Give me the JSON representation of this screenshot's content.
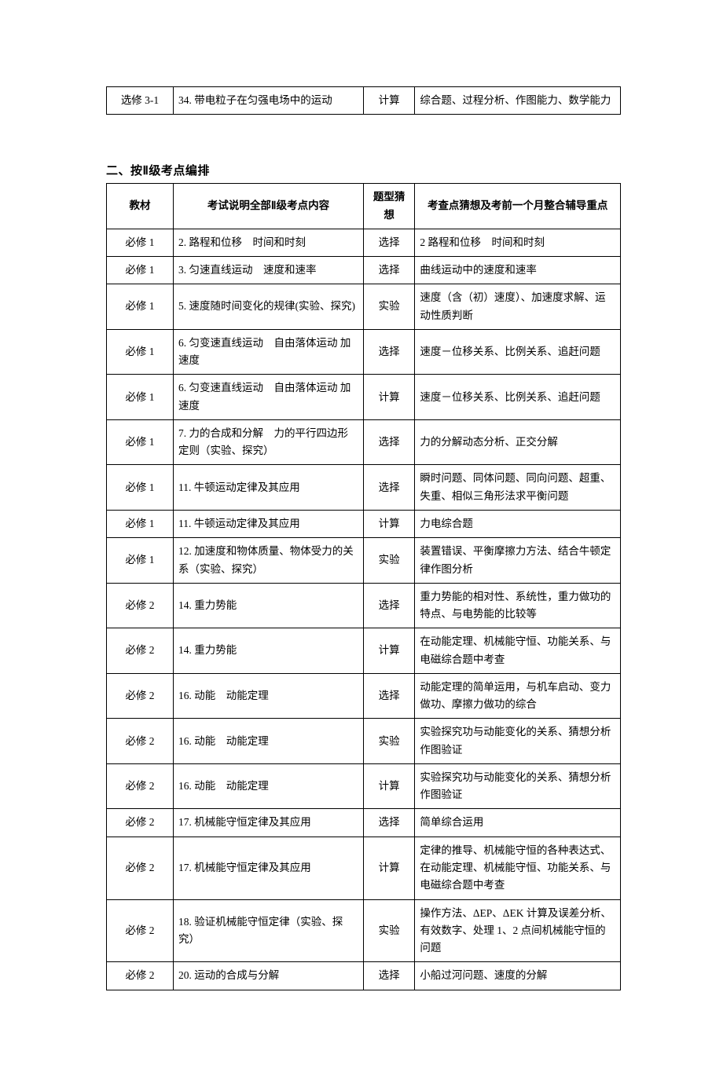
{
  "tableTop": {
    "rows": [
      {
        "textbook": "选修 3-1",
        "content": "34. 带电粒子在匀强电场中的运动",
        "qtype": "计算",
        "focus": "综合题、过程分析、作图能力、数学能力"
      }
    ]
  },
  "sectionTitle": "二、按Ⅱ级考点编排",
  "tableMain": {
    "headers": {
      "textbook": "教材",
      "content": "考试说明全部Ⅱ级考点内容",
      "qtype": "题型猜想",
      "focus": "考查点猜想及考前一个月整合辅导重点"
    },
    "rows": [
      {
        "textbook": "必修 1",
        "content": "2. 路程和位移　时间和时刻",
        "qtype": "选择",
        "focus": "2 路程和位移　时间和时刻"
      },
      {
        "textbook": "必修 1",
        "content": "3. 匀速直线运动　速度和速率",
        "qtype": "选择",
        "focus": "曲线运动中的速度和速率"
      },
      {
        "textbook": "必修 1",
        "content": "5. 速度随时间变化的规律(实验、探究)",
        "qtype": "实验",
        "focus": "速度（含（初）速度）、加速度求解、运动性质判断"
      },
      {
        "textbook": "必修 1",
        "content": "6. 匀变速直线运动　自由落体运动 加速度",
        "qtype": "选择",
        "focus": "速度－位移关系、比例关系、追赶问题"
      },
      {
        "textbook": "必修 1",
        "content": "6. 匀变速直线运动　自由落体运动 加速度",
        "qtype": "计算",
        "focus": "速度－位移关系、比例关系、追赶问题"
      },
      {
        "textbook": "必修 1",
        "content": "7. 力的合成和分解　力的平行四边形定则（实验、探究）",
        "qtype": "选择",
        "focus": "力的分解动态分析、正交分解"
      },
      {
        "textbook": "必修 1",
        "content": "11. 牛顿运动定律及其应用",
        "qtype": "选择",
        "focus": "瞬时问题、同体问题、同向问题、超重、失重、相似三角形法求平衡问题"
      },
      {
        "textbook": "必修 1",
        "content": "11. 牛顿运动定律及其应用",
        "qtype": "计算",
        "focus": "力电综合题"
      },
      {
        "textbook": "必修 1",
        "content": "12. 加速度和物体质量、物体受力的关系（实验、探究）",
        "qtype": "实验",
        "focus": "装置错误、平衡摩擦力方法、结合牛顿定律作图分析"
      },
      {
        "textbook": "必修 2",
        "content": "14. 重力势能",
        "qtype": "选择",
        "focus": "重力势能的相对性、系统性，重力做功的特点、与电势能的比较等"
      },
      {
        "textbook": "必修 2",
        "content": "14. 重力势能",
        "qtype": "计算",
        "focus": "在动能定理、机械能守恒、功能关系、与电磁综合题中考查"
      },
      {
        "textbook": "必修 2",
        "content": "16. 动能　动能定理",
        "qtype": "选择",
        "focus": "动能定理的简单运用，与机车启动、变力做功、摩擦力做功的综合"
      },
      {
        "textbook": "必修 2",
        "content": "16. 动能　动能定理",
        "qtype": "实验",
        "focus": "实验探究功与动能变化的关系、猜想分析作图验证"
      },
      {
        "textbook": "必修 2",
        "content": "16. 动能　动能定理",
        "qtype": "计算",
        "focus": "实验探究功与动能变化的关系、猜想分析作图验证"
      },
      {
        "textbook": "必修 2",
        "content": "17. 机械能守恒定律及其应用",
        "qtype": "选择",
        "focus": "简单综合运用"
      },
      {
        "textbook": "必修 2",
        "content": "17. 机械能守恒定律及其应用",
        "qtype": "计算",
        "focus": "定律的推导、机械能守恒的各种表达式、在动能定理、机械能守恒、功能关系、与电磁综合题中考查"
      },
      {
        "textbook": "必修 2",
        "content": "18. 验证机械能守恒定律（实验、探究）",
        "qtype": "实验",
        "focus": "操作方法、ΔEP、ΔEK 计算及误差分析、有效数字、处理 1、2 点间机械能守恒的问题"
      },
      {
        "textbook": "必修 2",
        "content": "20. 运动的合成与分解",
        "qtype": "选择",
        "focus": "小船过河问题、速度的分解"
      }
    ]
  }
}
